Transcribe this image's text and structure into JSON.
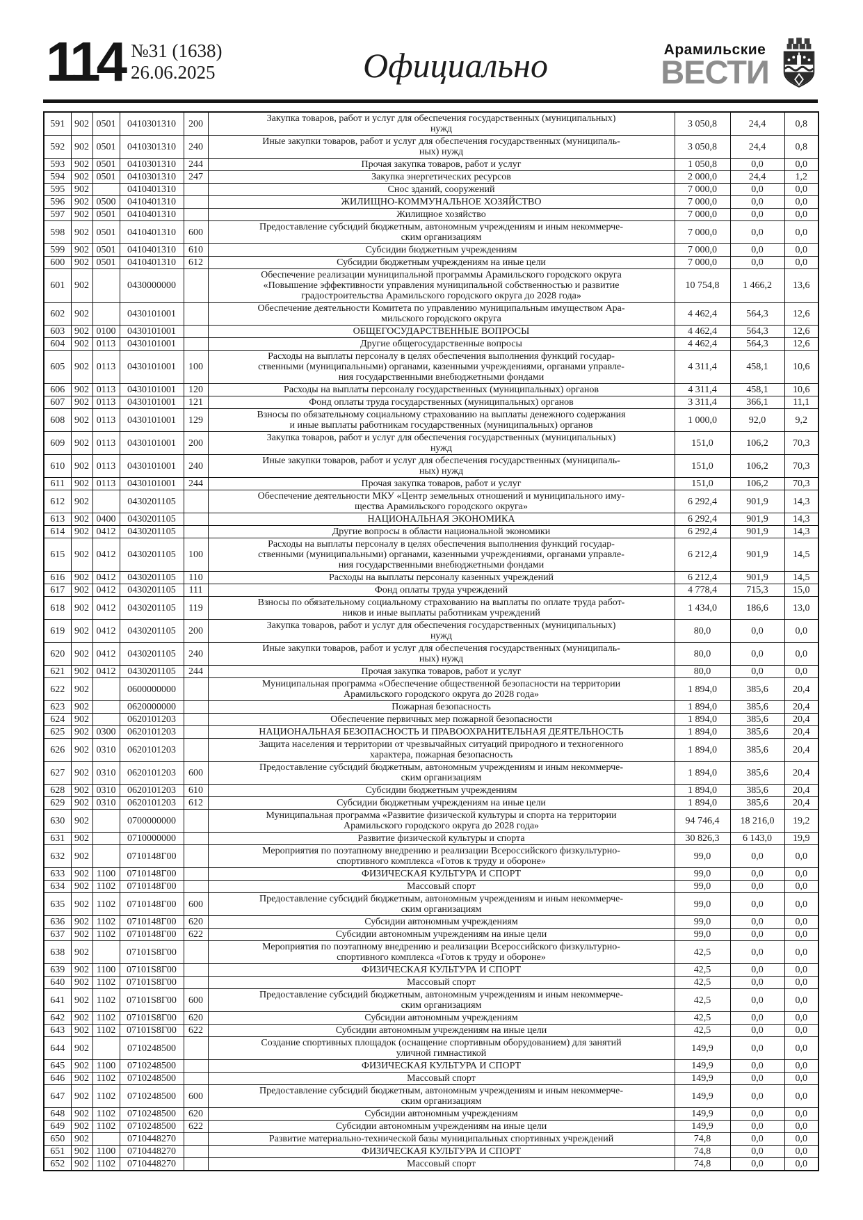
{
  "header": {
    "page_number": "114",
    "issue_number": "№31 (1638)",
    "issue_date": "26.06.2025",
    "rubric": "Официально",
    "brand_top": "Арамильские",
    "brand_bottom": "ВЕСТИ",
    "icons": {
      "crest": "aramil-city-coat-of-arms"
    }
  },
  "colors": {
    "text": "#1a1a1a",
    "brand_gray": "#8d8d8d",
    "rule": "#141414"
  },
  "table": {
    "rows": [
      [
        "591",
        "902",
        "0501",
        "0410301310",
        "200",
        "Закупка товаров, работ и услуг для обеспечения государственных (муниципальных)\nнужд",
        "3 050,8",
        "24,4",
        "0,8"
      ],
      [
        "592",
        "902",
        "0501",
        "0410301310",
        "240",
        "Иные закупки товаров, работ и услуг для обеспечения государственных (муниципаль-\nных) нужд",
        "3 050,8",
        "24,4",
        "0,8"
      ],
      [
        "593",
        "902",
        "0501",
        "0410301310",
        "244",
        "Прочая закупка товаров, работ и услуг",
        "1 050,8",
        "0,0",
        "0,0"
      ],
      [
        "594",
        "902",
        "0501",
        "0410301310",
        "247",
        "Закупка энергетических ресурсов",
        "2 000,0",
        "24,4",
        "1,2"
      ],
      [
        "595",
        "902",
        "",
        "0410401310",
        "",
        "Снос зданий, сооружений",
        "7 000,0",
        "0,0",
        "0,0"
      ],
      [
        "596",
        "902",
        "0500",
        "0410401310",
        "",
        "ЖИЛИЩНО-КОММУНАЛЬНОЕ ХОЗЯЙСТВО",
        "7 000,0",
        "0,0",
        "0,0"
      ],
      [
        "597",
        "902",
        "0501",
        "0410401310",
        "",
        "Жилищное хозяйство",
        "7 000,0",
        "0,0",
        "0,0"
      ],
      [
        "598",
        "902",
        "0501",
        "0410401310",
        "600",
        "Предоставление субсидий бюджетным, автономным учреждениям и иным некоммерче-\nским организациям",
        "7 000,0",
        "0,0",
        "0,0"
      ],
      [
        "599",
        "902",
        "0501",
        "0410401310",
        "610",
        "Субсидии бюджетным учреждениям",
        "7 000,0",
        "0,0",
        "0,0"
      ],
      [
        "600",
        "902",
        "0501",
        "0410401310",
        "612",
        "Субсидии бюджетным учреждениям на иные цели",
        "7 000,0",
        "0,0",
        "0,0"
      ],
      [
        "601",
        "902",
        "",
        "0430000000",
        "",
        "Обеспечение реализации муниципальной программы Арамильского городского округа\n«Повышение эффективности управления муниципальной собственностью и развитие\nградостроительства Арамильского городского округа до 2028 года»",
        "10 754,8",
        "1 466,2",
        "13,6"
      ],
      [
        "602",
        "902",
        "",
        "0430101001",
        "",
        "Обеспечение деятельности Комитета по управлению муниципальным имуществом Ара-\nмильского городского округа",
        "4 462,4",
        "564,3",
        "12,6"
      ],
      [
        "603",
        "902",
        "0100",
        "0430101001",
        "",
        "ОБЩЕГОСУДАРСТВЕННЫЕ ВОПРОСЫ",
        "4 462,4",
        "564,3",
        "12,6"
      ],
      [
        "604",
        "902",
        "0113",
        "0430101001",
        "",
        "Другие общегосударственные вопросы",
        "4 462,4",
        "564,3",
        "12,6"
      ],
      [
        "605",
        "902",
        "0113",
        "0430101001",
        "100",
        "Расходы на выплаты персоналу в целях обеспечения выполнения функций государ-\nственными (муниципальными) органами, казенными учреждениями, органами управле-\nния государственными внебюджетными фондами",
        "4 311,4",
        "458,1",
        "10,6"
      ],
      [
        "606",
        "902",
        "0113",
        "0430101001",
        "120",
        "Расходы на выплаты персоналу государственных (муниципальных) органов",
        "4 311,4",
        "458,1",
        "10,6"
      ],
      [
        "607",
        "902",
        "0113",
        "0430101001",
        "121",
        "Фонд оплаты труда государственных (муниципальных) органов",
        "3 311,4",
        "366,1",
        "11,1"
      ],
      [
        "608",
        "902",
        "0113",
        "0430101001",
        "129",
        "Взносы по обязательному социальному страхованию на выплаты денежного содержания\nи иные выплаты работникам государственных (муниципальных) органов",
        "1 000,0",
        "92,0",
        "9,2"
      ],
      [
        "609",
        "902",
        "0113",
        "0430101001",
        "200",
        "Закупка товаров, работ и услуг для обеспечения государственных (муниципальных)\nнужд",
        "151,0",
        "106,2",
        "70,3"
      ],
      [
        "610",
        "902",
        "0113",
        "0430101001",
        "240",
        "Иные закупки товаров, работ и услуг для обеспечения государственных (муниципаль-\nных) нужд",
        "151,0",
        "106,2",
        "70,3"
      ],
      [
        "611",
        "902",
        "0113",
        "0430101001",
        "244",
        "Прочая закупка товаров, работ и услуг",
        "151,0",
        "106,2",
        "70,3"
      ],
      [
        "612",
        "902",
        "",
        "0430201105",
        "",
        "Обеспечение деятельности МКУ «Центр земельных отношений и муниципального иму-\nщества Арамильского городского округа»",
        "6 292,4",
        "901,9",
        "14,3"
      ],
      [
        "613",
        "902",
        "0400",
        "0430201105",
        "",
        "НАЦИОНАЛЬНАЯ ЭКОНОМИКА",
        "6 292,4",
        "901,9",
        "14,3"
      ],
      [
        "614",
        "902",
        "0412",
        "0430201105",
        "",
        "Другие вопросы в области национальной экономики",
        "6 292,4",
        "901,9",
        "14,3"
      ],
      [
        "615",
        "902",
        "0412",
        "0430201105",
        "100",
        "Расходы на выплаты персоналу в целях обеспечения выполнения функций государ-\nственными (муниципальными) органами, казенными учреждениями, органами управле-\nния государственными внебюджетными фондами",
        "6 212,4",
        "901,9",
        "14,5"
      ],
      [
        "616",
        "902",
        "0412",
        "0430201105",
        "110",
        "Расходы на выплаты персоналу казенных учреждений",
        "6 212,4",
        "901,9",
        "14,5"
      ],
      [
        "617",
        "902",
        "0412",
        "0430201105",
        "111",
        "Фонд оплаты труда учреждений",
        "4 778,4",
        "715,3",
        "15,0"
      ],
      [
        "618",
        "902",
        "0412",
        "0430201105",
        "119",
        "Взносы по обязательному социальному страхованию на выплаты по оплате труда работ-\nников и иные выплаты работникам учреждений",
        "1 434,0",
        "186,6",
        "13,0"
      ],
      [
        "619",
        "902",
        "0412",
        "0430201105",
        "200",
        "Закупка товаров, работ и услуг для обеспечения государственных (муниципальных)\nнужд",
        "80,0",
        "0,0",
        "0,0"
      ],
      [
        "620",
        "902",
        "0412",
        "0430201105",
        "240",
        "Иные закупки товаров, работ и услуг для обеспечения государственных (муниципаль-\nных) нужд",
        "80,0",
        "0,0",
        "0,0"
      ],
      [
        "621",
        "902",
        "0412",
        "0430201105",
        "244",
        "Прочая закупка товаров, работ и услуг",
        "80,0",
        "0,0",
        "0,0"
      ],
      [
        "622",
        "902",
        "",
        "0600000000",
        "",
        "Муниципальная программа «Обеспечение общественной безопасности на территории\nАрамильского городского округа до 2028 года»",
        "1 894,0",
        "385,6",
        "20,4"
      ],
      [
        "623",
        "902",
        "",
        "0620000000",
        "",
        "Пожарная безопасность",
        "1 894,0",
        "385,6",
        "20,4"
      ],
      [
        "624",
        "902",
        "",
        "0620101203",
        "",
        "Обеспечение первичных мер пожарной безопасности",
        "1 894,0",
        "385,6",
        "20,4"
      ],
      [
        "625",
        "902",
        "0300",
        "0620101203",
        "",
        "НАЦИОНАЛЬНАЯ БЕЗОПАСНОСТЬ И ПРАВООХРАНИТЕЛЬНАЯ ДЕЯТЕЛЬНОСТЬ",
        "1 894,0",
        "385,6",
        "20,4"
      ],
      [
        "626",
        "902",
        "0310",
        "0620101203",
        "",
        "Защита населения и территории от чрезвычайных ситуаций природного и техногенного\nхарактера, пожарная безопасность",
        "1 894,0",
        "385,6",
        "20,4"
      ],
      [
        "627",
        "902",
        "0310",
        "0620101203",
        "600",
        "Предоставление субсидий бюджетным, автономным учреждениям и иным некоммерче-\nским организациям",
        "1 894,0",
        "385,6",
        "20,4"
      ],
      [
        "628",
        "902",
        "0310",
        "0620101203",
        "610",
        "Субсидии бюджетным учреждениям",
        "1 894,0",
        "385,6",
        "20,4"
      ],
      [
        "629",
        "902",
        "0310",
        "0620101203",
        "612",
        "Субсидии бюджетным учреждениям на иные цели",
        "1 894,0",
        "385,6",
        "20,4"
      ],
      [
        "630",
        "902",
        "",
        "0700000000",
        "",
        "Муниципальная программа «Развитие физической культуры и спорта на территории\nАрамильского городского округа до 2028 года»",
        "94 746,4",
        "18 216,0",
        "19,2"
      ],
      [
        "631",
        "902",
        "",
        "0710000000",
        "",
        "Развитие физической культуры и спорта",
        "30 826,3",
        "6 143,0",
        "19,9"
      ],
      [
        "632",
        "902",
        "",
        "0710148Г00",
        "",
        "Мероприятия по поэтапному внедрению и реализации Всероссийского физкультурно-\nспортивного комплекса «Готов к труду и обороне»",
        "99,0",
        "0,0",
        "0,0"
      ],
      [
        "633",
        "902",
        "1100",
        "0710148Г00",
        "",
        "ФИЗИЧЕСКАЯ КУЛЬТУРА И СПОРТ",
        "99,0",
        "0,0",
        "0,0"
      ],
      [
        "634",
        "902",
        "1102",
        "0710148Г00",
        "",
        "Массовый спорт",
        "99,0",
        "0,0",
        "0,0"
      ],
      [
        "635",
        "902",
        "1102",
        "0710148Г00",
        "600",
        "Предоставление субсидий бюджетным, автономным учреждениям и иным некоммерче-\nским организациям",
        "99,0",
        "0,0",
        "0,0"
      ],
      [
        "636",
        "902",
        "1102",
        "0710148Г00",
        "620",
        "Субсидии автономным учреждениям",
        "99,0",
        "0,0",
        "0,0"
      ],
      [
        "637",
        "902",
        "1102",
        "0710148Г00",
        "622",
        "Субсидии автономным учреждениям на иные цели",
        "99,0",
        "0,0",
        "0,0"
      ],
      [
        "638",
        "902",
        "",
        "07101S8Г00",
        "",
        "Мероприятия по поэтапному внедрению и реализации Всероссийского физкультурно-\nспортивного комплекса «Готов к труду и обороне»",
        "42,5",
        "0,0",
        "0,0"
      ],
      [
        "639",
        "902",
        "1100",
        "07101S8Г00",
        "",
        "ФИЗИЧЕСКАЯ КУЛЬТУРА И СПОРТ",
        "42,5",
        "0,0",
        "0,0"
      ],
      [
        "640",
        "902",
        "1102",
        "07101S8Г00",
        "",
        "Массовый спорт",
        "42,5",
        "0,0",
        "0,0"
      ],
      [
        "641",
        "902",
        "1102",
        "07101S8Г00",
        "600",
        "Предоставление субсидий бюджетным, автономным учреждениям и иным некоммерче-\nским организациям",
        "42,5",
        "0,0",
        "0,0"
      ],
      [
        "642",
        "902",
        "1102",
        "07101S8Г00",
        "620",
        "Субсидии автономным учреждениям",
        "42,5",
        "0,0",
        "0,0"
      ],
      [
        "643",
        "902",
        "1102",
        "07101S8Г00",
        "622",
        "Субсидии автономным учреждениям на иные цели",
        "42,5",
        "0,0",
        "0,0"
      ],
      [
        "644",
        "902",
        "",
        "0710248500",
        "",
        "Создание спортивных площадок (оснащение спортивным оборудованием) для занятий\nуличной гимнастикой",
        "149,9",
        "0,0",
        "0,0"
      ],
      [
        "645",
        "902",
        "1100",
        "0710248500",
        "",
        "ФИЗИЧЕСКАЯ КУЛЬТУРА И СПОРТ",
        "149,9",
        "0,0",
        "0,0"
      ],
      [
        "646",
        "902",
        "1102",
        "0710248500",
        "",
        "Массовый спорт",
        "149,9",
        "0,0",
        "0,0"
      ],
      [
        "647",
        "902",
        "1102",
        "0710248500",
        "600",
        "Предоставление субсидий бюджетным, автономным учреждениям и иным некоммерче-\nским организациям",
        "149,9",
        "0,0",
        "0,0"
      ],
      [
        "648",
        "902",
        "1102",
        "0710248500",
        "620",
        "Субсидии автономным учреждениям",
        "149,9",
        "0,0",
        "0,0"
      ],
      [
        "649",
        "902",
        "1102",
        "0710248500",
        "622",
        "Субсидии автономным учреждениям на иные цели",
        "149,9",
        "0,0",
        "0,0"
      ],
      [
        "650",
        "902",
        "",
        "0710448270",
        "",
        "Развитие материально-технической базы муниципальных спортивных учреждений",
        "74,8",
        "0,0",
        "0,0"
      ],
      [
        "651",
        "902",
        "1100",
        "0710448270",
        "",
        "ФИЗИЧЕСКАЯ КУЛЬТУРА И СПОРТ",
        "74,8",
        "0,0",
        "0,0"
      ],
      [
        "652",
        "902",
        "1102",
        "0710448270",
        "",
        "Массовый спорт",
        "74,8",
        "0,0",
        "0,0"
      ]
    ]
  }
}
